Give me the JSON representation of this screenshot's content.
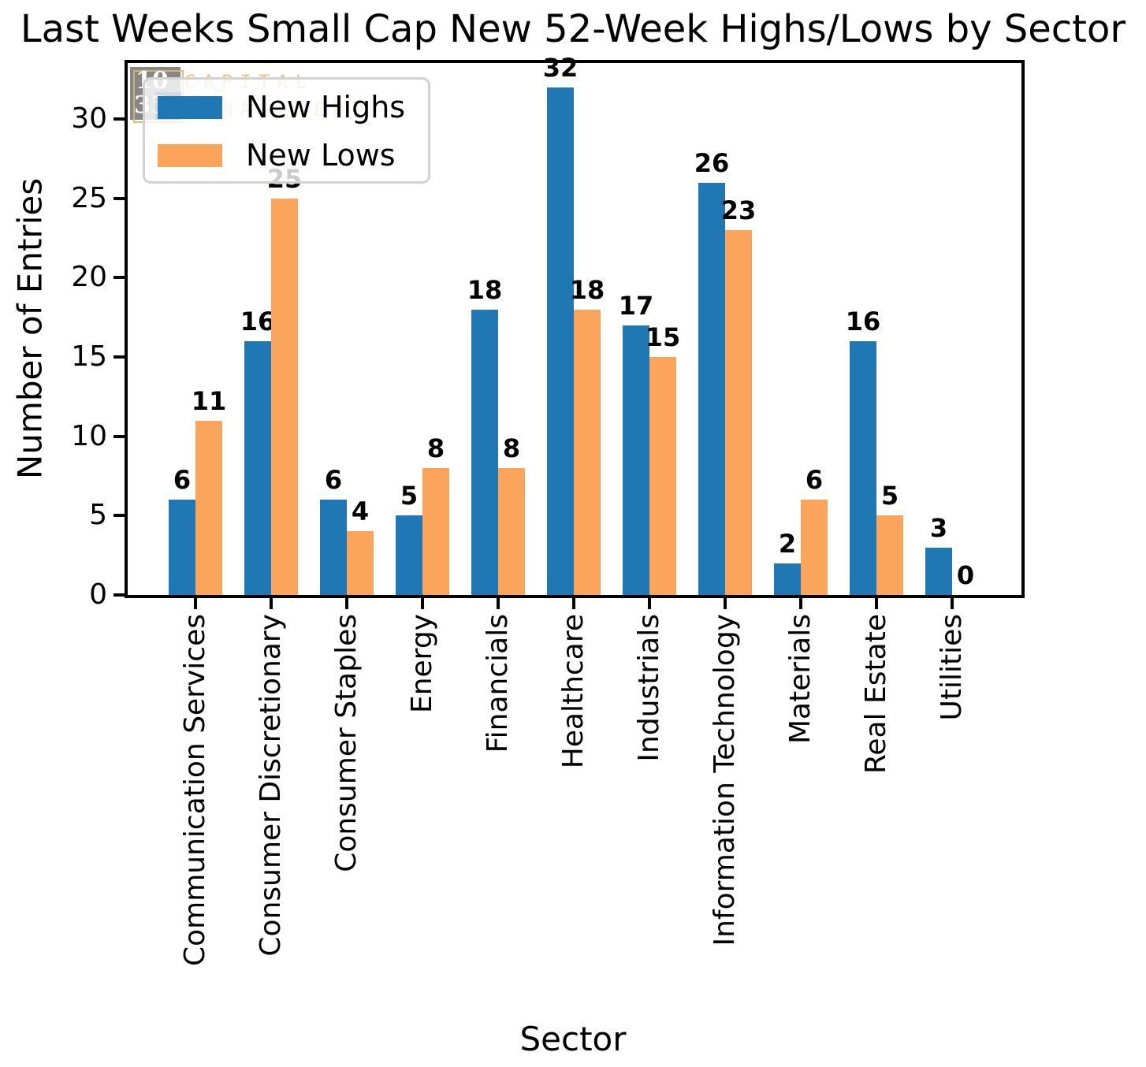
{
  "title": "Last Weeks Small Cap New 52-Week Highs/Lows by Sector",
  "axes": {
    "xlabel": "Sector",
    "ylabel": "Number of Entries"
  },
  "legend": {
    "items": [
      {
        "label": "New Highs",
        "color": "#1f77b4"
      },
      {
        "label": "New Lows",
        "color": "#fba55c"
      }
    ]
  },
  "watermark": {
    "top_number": "10",
    "bottom_number_first": "3",
    "bottom_number_second": "5",
    "word1": "CAPITAL",
    "word2": "MANAGEMENT",
    "gray_color": "#7d7d7d",
    "navy_color": "#17486e",
    "gold_color": "#dfc079"
  },
  "chart_data": {
    "type": "bar",
    "title": "Last Weeks Small Cap New 52-Week Highs/Lows by Sector",
    "xlabel": "Sector",
    "ylabel": "Number of Entries",
    "categories": [
      "Communication Services",
      "Consumer Discretionary",
      "Consumer Staples",
      "Energy",
      "Financials",
      "Healthcare",
      "Industrials",
      "Information Technology",
      "Materials",
      "Real Estate",
      "Utilities"
    ],
    "series": [
      {
        "name": "New Highs",
        "color": "#1f77b4",
        "values": [
          6,
          16,
          6,
          5,
          18,
          32,
          17,
          26,
          2,
          16,
          3
        ]
      },
      {
        "name": "New Lows",
        "color": "#fba55c",
        "values": [
          11,
          25,
          4,
          8,
          8,
          18,
          15,
          23,
          6,
          5,
          0
        ]
      }
    ],
    "yticks": [
      0,
      5,
      10,
      15,
      20,
      25,
      30
    ],
    "ylim": [
      0,
      33.5
    ],
    "bar_value_labels": true,
    "legend_position": "upper left",
    "grid": false
  }
}
